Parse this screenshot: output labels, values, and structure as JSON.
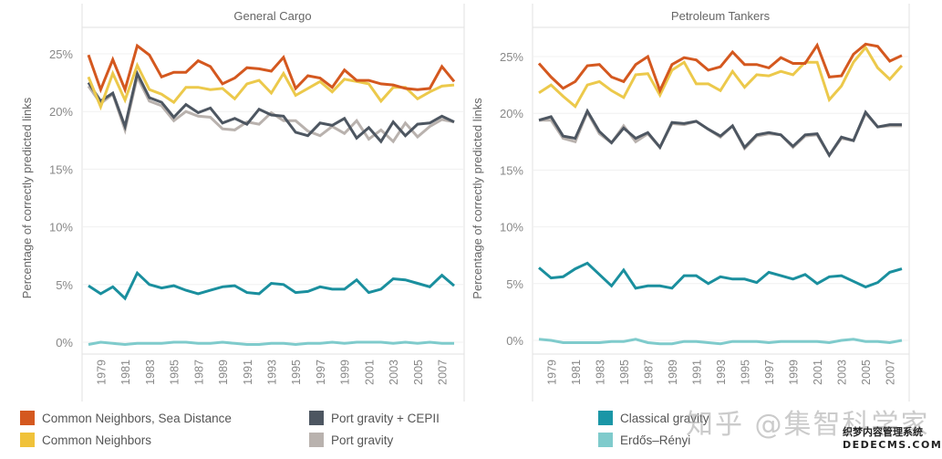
{
  "chart_data": [
    {
      "type": "line",
      "title": "General Cargo",
      "xlabel": "",
      "ylabel": "Percentage of correctly predicted links",
      "ylim": [
        0,
        25
      ],
      "yticks": [
        "0%",
        "5%",
        "10%",
        "15%",
        "20%",
        "25%"
      ],
      "ytick_values": [
        0,
        5,
        10,
        15,
        20,
        25
      ],
      "x": [
        1978,
        1979,
        1980,
        1981,
        1982,
        1983,
        1984,
        1985,
        1986,
        1987,
        1988,
        1989,
        1990,
        1991,
        1992,
        1993,
        1994,
        1995,
        1996,
        1997,
        1998,
        1999,
        2000,
        2001,
        2002,
        2003,
        2004,
        2005,
        2006,
        2007,
        2008
      ],
      "xtick_labels": [
        "1979",
        "1981",
        "1983",
        "1985",
        "1987",
        "1989",
        "1991",
        "1993",
        "1995",
        "1997",
        "1999",
        "2001",
        "2003",
        "2005",
        "2007"
      ],
      "grid": true,
      "series": [
        {
          "name": "Port gravity",
          "values": [
            22.2,
            20.7,
            21.5,
            18.4,
            23.0,
            20.9,
            20.5,
            19.2,
            20.0,
            19.6,
            19.5,
            18.5,
            18.4,
            19.1,
            18.9,
            19.9,
            19.2,
            19.2,
            18.3,
            17.9,
            18.7,
            18.1,
            19.2,
            17.6,
            18.4,
            17.4,
            19.0,
            17.8,
            18.7,
            19.3,
            19.1
          ]
        },
        {
          "name": "Port gravity + CEPII",
          "values": [
            22.5,
            20.9,
            21.6,
            18.7,
            23.3,
            21.2,
            20.8,
            19.5,
            20.6,
            19.9,
            20.3,
            19.0,
            19.4,
            18.9,
            20.2,
            19.7,
            19.6,
            18.2,
            17.9,
            19.0,
            18.8,
            19.4,
            17.7,
            18.6,
            17.4,
            19.1,
            17.9,
            18.9,
            19.0,
            19.6,
            19.1
          ]
        },
        {
          "name": "Common Neighbors",
          "values": [
            23.0,
            20.4,
            23.3,
            21.0,
            24.0,
            21.9,
            21.5,
            20.8,
            22.1,
            22.1,
            21.9,
            22.0,
            21.1,
            22.4,
            22.7,
            21.6,
            23.3,
            21.4,
            22.0,
            22.6,
            21.7,
            22.8,
            22.6,
            22.4,
            20.9,
            22.1,
            22.1,
            21.1,
            21.7,
            22.2,
            22.3
          ]
        },
        {
          "name": "Common Neighbors, Sea Distance",
          "values": [
            24.9,
            21.9,
            24.5,
            21.9,
            25.7,
            24.9,
            23.0,
            23.4,
            23.4,
            24.4,
            23.9,
            22.4,
            22.9,
            23.8,
            23.7,
            23.5,
            24.7,
            22.0,
            23.1,
            22.9,
            22.1,
            23.6,
            22.7,
            22.7,
            22.4,
            22.3,
            22.0,
            21.9,
            22.0,
            23.9,
            22.6
          ]
        },
        {
          "name": "Classical gravity",
          "values": [
            4.9,
            4.2,
            4.8,
            3.8,
            6.0,
            5.0,
            4.7,
            4.9,
            4.5,
            4.2,
            4.5,
            4.8,
            4.9,
            4.3,
            4.2,
            5.1,
            5.0,
            4.3,
            4.4,
            4.8,
            4.6,
            4.6,
            5.4,
            4.3,
            4.6,
            5.5,
            5.4,
            5.1,
            4.8,
            5.8,
            4.9
          ]
        },
        {
          "name": "Erdős–Rényi",
          "values": [
            -0.2,
            0.0,
            -0.1,
            -0.2,
            -0.1,
            -0.1,
            -0.1,
            0.0,
            0.0,
            -0.1,
            -0.1,
            0.0,
            -0.1,
            -0.2,
            -0.2,
            -0.1,
            -0.1,
            -0.2,
            -0.1,
            -0.1,
            0.0,
            -0.1,
            0.0,
            0.0,
            0.0,
            -0.1,
            0.0,
            -0.1,
            0.0,
            -0.1,
            -0.1
          ]
        }
      ]
    },
    {
      "type": "line",
      "title": "Petroleum Tankers",
      "xlabel": "",
      "ylabel": "Percentage of correctly predicted links",
      "ylim": [
        0,
        25
      ],
      "yticks": [
        "0%",
        "5%",
        "10%",
        "15%",
        "20%",
        "25%"
      ],
      "ytick_values": [
        0,
        5,
        10,
        15,
        20,
        25
      ],
      "x": [
        1978,
        1979,
        1980,
        1981,
        1982,
        1983,
        1984,
        1985,
        1986,
        1987,
        1988,
        1989,
        1990,
        1991,
        1992,
        1993,
        1994,
        1995,
        1996,
        1997,
        1998,
        1999,
        2000,
        2001,
        2002,
        2003,
        2004,
        2005,
        2006,
        2007,
        2008
      ],
      "xtick_labels": [
        "1979",
        "1981",
        "1983",
        "1985",
        "1987",
        "1989",
        "1991",
        "1993",
        "1995",
        "1997",
        "1999",
        "2001",
        "2003",
        "2005",
        "2007"
      ],
      "grid": true,
      "series": [
        {
          "name": "Port gravity",
          "values": [
            19.4,
            19.4,
            17.8,
            17.5,
            20.1,
            18.2,
            17.4,
            18.9,
            17.5,
            18.2,
            17.0,
            19.1,
            19.0,
            19.3,
            18.6,
            17.9,
            18.9,
            16.9,
            18.0,
            18.2,
            18.1,
            17.0,
            18.0,
            18.1,
            16.3,
            17.8,
            17.6,
            20.0,
            18.8,
            18.9,
            18.9
          ]
        },
        {
          "name": "Port gravity + CEPII",
          "values": [
            19.4,
            19.7,
            18.0,
            17.8,
            20.2,
            18.4,
            17.4,
            18.7,
            17.8,
            18.3,
            17.0,
            19.2,
            19.1,
            19.3,
            18.6,
            18.0,
            18.9,
            17.0,
            18.1,
            18.3,
            18.1,
            17.1,
            18.1,
            18.2,
            16.3,
            17.9,
            17.6,
            20.1,
            18.8,
            19.0,
            19.0
          ]
        },
        {
          "name": "Common Neighbors",
          "values": [
            21.8,
            22.5,
            21.5,
            20.6,
            22.5,
            22.8,
            22.0,
            21.4,
            23.4,
            23.5,
            21.6,
            23.8,
            24.5,
            22.6,
            22.6,
            22.0,
            23.7,
            22.3,
            23.4,
            23.3,
            23.7,
            23.4,
            24.5,
            24.5,
            21.2,
            22.4,
            24.5,
            25.8,
            24.0,
            23.0,
            24.2
          ]
        },
        {
          "name": "Common Neighbors, Sea Distance",
          "values": [
            24.4,
            23.2,
            22.2,
            22.8,
            24.2,
            24.3,
            23.2,
            22.8,
            24.3,
            25.0,
            22.0,
            24.3,
            24.9,
            24.7,
            23.8,
            24.1,
            25.4,
            24.3,
            24.3,
            24.0,
            24.9,
            24.4,
            24.4,
            26.0,
            23.2,
            23.3,
            25.2,
            26.1,
            25.9,
            24.6,
            25.1
          ]
        },
        {
          "name": "Classical gravity",
          "values": [
            6.4,
            5.5,
            5.6,
            6.3,
            6.8,
            5.8,
            4.8,
            6.2,
            4.6,
            4.8,
            4.8,
            4.6,
            5.7,
            5.7,
            5.0,
            5.6,
            5.4,
            5.4,
            5.1,
            6.0,
            5.7,
            5.4,
            5.8,
            5.0,
            5.6,
            5.7,
            5.2,
            4.7,
            5.1,
            6.0,
            6.3
          ]
        },
        {
          "name": "Erdős–Rényi",
          "values": [
            0.1,
            0.0,
            -0.2,
            -0.2,
            -0.2,
            -0.2,
            -0.1,
            -0.1,
            0.1,
            -0.2,
            -0.3,
            -0.3,
            -0.1,
            -0.1,
            -0.2,
            -0.3,
            -0.1,
            -0.1,
            -0.1,
            -0.2,
            -0.1,
            -0.1,
            -0.1,
            -0.1,
            -0.2,
            0.0,
            0.1,
            -0.1,
            -0.1,
            -0.2,
            0.0
          ]
        }
      ]
    }
  ],
  "colors": {
    "Common Neighbors, Sea Distance": "#d4581f",
    "Common Neighbors": "#ecc94b",
    "Port gravity + CEPII": "#4d5661",
    "Port gravity": "#b9b2ae",
    "Classical gravity": "#1a8f9e",
    "Erdős–Rényi": "#7fcbcc"
  },
  "legend": {
    "items": [
      {
        "label": "Common Neighbors, Sea Distance",
        "color": "#d4581f"
      },
      {
        "label": "Common Neighbors",
        "color": "#f0c23a"
      },
      {
        "label": "Port gravity + CEPII",
        "color": "#4d5661"
      },
      {
        "label": "Port gravity",
        "color": "#b9b2ae"
      },
      {
        "label": "Classical gravity",
        "color": "#1a96a6"
      },
      {
        "label": "Erdős–Rényi",
        "color": "#7fcbcc"
      }
    ]
  },
  "watermark": {
    "text": "知乎 @集智科学家",
    "line1": "织梦内容管理系统",
    "line2": "DEDECMS.COM"
  }
}
